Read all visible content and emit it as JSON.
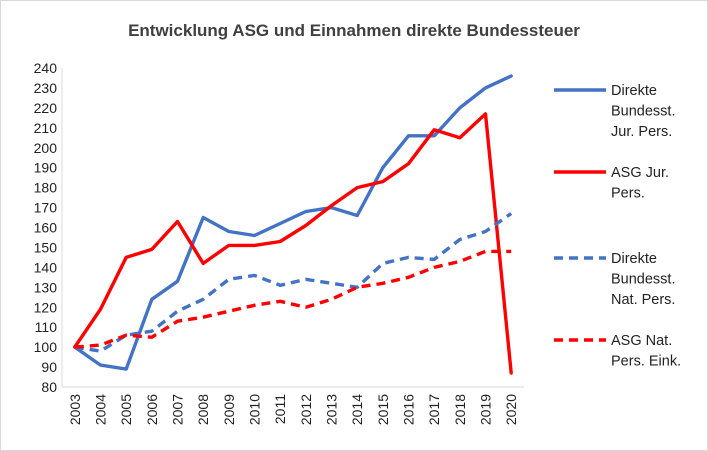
{
  "chart_data": {
    "type": "line",
    "title": "Entwicklung ASG und Einnahmen direkte Bundessteuer",
    "xlabel": "",
    "ylabel": "",
    "categories": [
      "2003",
      "2004",
      "2005",
      "2006",
      "2007",
      "2008",
      "2009",
      "2010",
      "2011",
      "2012",
      "2013",
      "2014",
      "2015",
      "2016",
      "2017",
      "2018",
      "2019",
      "2020"
    ],
    "ylim": [
      80,
      240
    ],
    "yticks": [
      80,
      90,
      100,
      110,
      120,
      130,
      140,
      150,
      160,
      170,
      180,
      190,
      200,
      210,
      220,
      230,
      240
    ],
    "grid": false,
    "legend_position": "right",
    "series": [
      {
        "name_lines": [
          "Direkte",
          "Bundesst.",
          "Jur. Pers."
        ],
        "color": "#4472c4",
        "dash": false,
        "values": [
          100,
          91,
          89,
          124,
          133,
          165,
          158,
          156,
          162,
          168,
          170,
          166,
          190,
          206,
          206,
          220,
          230,
          236
        ]
      },
      {
        "name_lines": [
          "ASG Jur.",
          "Pers."
        ],
        "color": "#ff0000",
        "dash": false,
        "values": [
          100,
          119,
          145,
          149,
          163,
          142,
          151,
          151,
          153,
          161,
          171,
          180,
          183,
          192,
          209,
          205,
          217,
          87
        ]
      },
      {
        "name_lines": [
          "Direkte",
          "Bundesst.",
          "Nat. Pers."
        ],
        "color": "#4472c4",
        "dash": true,
        "values": [
          100,
          98,
          106,
          108,
          118,
          124,
          134,
          136,
          131,
          134,
          132,
          130,
          142,
          145,
          144,
          154,
          158,
          167
        ]
      },
      {
        "name_lines": [
          "ASG Nat.",
          "Pers. Eink."
        ],
        "color": "#ff0000",
        "dash": true,
        "values": [
          100,
          101,
          106,
          105,
          113,
          115,
          118,
          121,
          123,
          120,
          124,
          130,
          132,
          135,
          140,
          143,
          148,
          148
        ]
      }
    ]
  }
}
